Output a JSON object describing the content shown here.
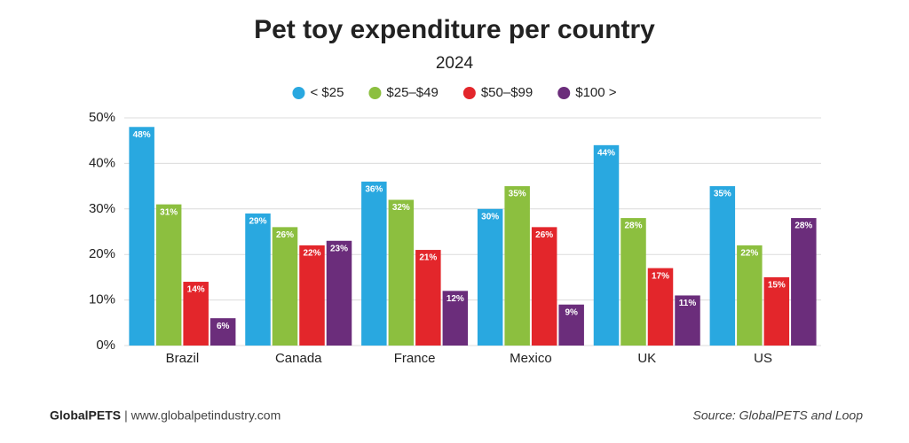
{
  "chart_data": {
    "type": "bar",
    "title": "Pet toy expenditure per country",
    "subtitle": "2024",
    "categories": [
      "Brazil",
      "Canada",
      "France",
      "Mexico",
      "UK",
      "US"
    ],
    "series": [
      {
        "name": "< $25",
        "color": "#29a8e0",
        "values": [
          48,
          29,
          36,
          30,
          44,
          35
        ],
        "value_labels": [
          "48%",
          "29%",
          "36%",
          "30%",
          "44%",
          "35%"
        ]
      },
      {
        "name": "$25–$49",
        "color": "#8cbf3f",
        "values": [
          31,
          26,
          32,
          35,
          28,
          22
        ],
        "value_labels": [
          "31%",
          "26%",
          "32%",
          "35%",
          "28%",
          "22%"
        ]
      },
      {
        "name": "$50–$99",
        "color": "#e3262b",
        "values": [
          14,
          22,
          21,
          26,
          17,
          15
        ],
        "value_labels": [
          "14%",
          "22%",
          "21%",
          "26%",
          "17%",
          "15%"
        ]
      },
      {
        "name": "$100 >",
        "color": "#6b2d7b",
        "values": [
          6,
          23,
          12,
          9,
          11,
          28
        ],
        "value_labels": [
          "6%",
          "23%",
          "12%",
          "9%",
          "11%",
          "28%"
        ]
      }
    ],
    "ylim": [
      0,
      50
    ],
    "yticks": [
      {
        "value": 0,
        "label": "0%"
      },
      {
        "value": 10,
        "label": "10%"
      },
      {
        "value": 20,
        "label": "20%"
      },
      {
        "value": 30,
        "label": "30%"
      },
      {
        "value": 40,
        "label": "40%"
      },
      {
        "value": 50,
        "label": "50%"
      }
    ],
    "grid": true,
    "footer": {
      "brand": "GlobalPETS",
      "url": "| www.globalpetindustry.com",
      "source": "Source: GlobalPETS and Loop"
    }
  }
}
